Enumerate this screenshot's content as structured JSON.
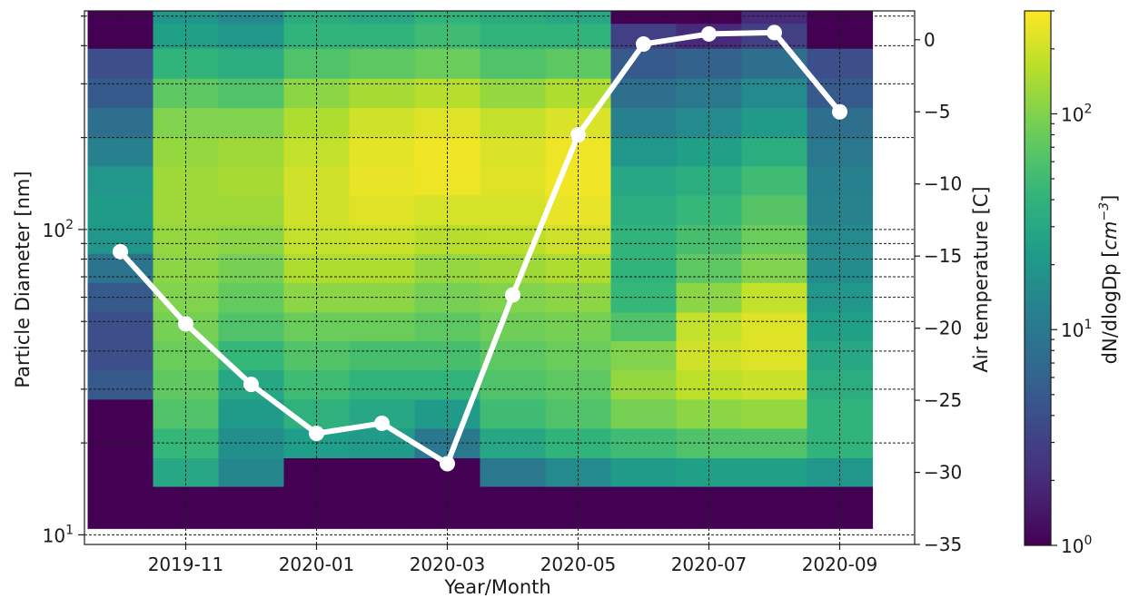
{
  "chart_data": {
    "type": "heatmap",
    "xlabel": "Year/Month",
    "ylabel_left": "Particle Diameter [nm]",
    "ylabel_right": "Air temperature [C]",
    "colorbar_label": "dN/dlogDp [cm⁻³]",
    "colorbar_label_parts": {
      "base": "dN/dlogDp [",
      "unit": "cm",
      "sup": "−3",
      "close": "]"
    },
    "colormap": "viridis",
    "x_tick_labels": [
      "2019-11",
      "2020-01",
      "2020-03",
      "2020-05",
      "2020-07",
      "2020-09"
    ],
    "x_tick_months": [
      "2019-11",
      "2020-01",
      "2020-03",
      "2020-05",
      "2020-07",
      "2020-09"
    ],
    "y_scale": "log",
    "y_tick_labels": [
      {
        "base": "10",
        "exp": "1",
        "value": 10
      },
      {
        "base": "10",
        "exp": "2",
        "value": 100
      }
    ],
    "ylim_nm": [
      9.3,
      520
    ],
    "right_y_ticks": [
      "0",
      "−5",
      "−10",
      "−15",
      "−20",
      "−25",
      "−30",
      "−35"
    ],
    "right_ylim_c": [
      -35,
      2
    ],
    "colorbar_ticks": [
      {
        "base": "10",
        "exp": "0",
        "value": 1
      },
      {
        "base": "10",
        "exp": "1",
        "value": 10
      },
      {
        "base": "10",
        "exp": "2",
        "value": 100
      }
    ],
    "colorbar_range": [
      1,
      300
    ],
    "grid": true,
    "months": [
      "2019-10",
      "2019-11",
      "2019-12",
      "2020-01",
      "2020-02",
      "2020-03",
      "2020-04",
      "2020-05",
      "2020-06",
      "2020-07",
      "2020-08",
      "2020-09"
    ],
    "diameter_bins_nm": [
      10.5,
      13,
      16,
      20,
      25,
      31,
      39,
      48,
      60,
      75,
      93,
      116,
      145,
      180,
      225,
      280,
      350,
      440,
      510
    ],
    "dN_dlogDp": [
      [
        1,
        1,
        1,
        1,
        1,
        5,
        4,
        4,
        5,
        9,
        20,
        22,
        20,
        12,
        8,
        5,
        4,
        1,
        1
      ],
      [
        1,
        1,
        30,
        45,
        60,
        72,
        80,
        90,
        100,
        110,
        120,
        130,
        130,
        120,
        100,
        70,
        40,
        25,
        20
      ],
      [
        1,
        1,
        14,
        17,
        22,
        30,
        45,
        60,
        75,
        90,
        110,
        130,
        140,
        130,
        100,
        60,
        35,
        20,
        15
      ],
      [
        1,
        1,
        1,
        24,
        38,
        50,
        62,
        80,
        110,
        150,
        180,
        200,
        200,
        180,
        150,
        110,
        60,
        40,
        35
      ],
      [
        1,
        1,
        1,
        22,
        30,
        40,
        55,
        80,
        110,
        150,
        190,
        230,
        250,
        240,
        200,
        140,
        70,
        40,
        30
      ],
      [
        1,
        1,
        1,
        10,
        22,
        40,
        55,
        70,
        90,
        120,
        160,
        210,
        260,
        270,
        230,
        160,
        80,
        50,
        40
      ],
      [
        1,
        1,
        10,
        30,
        50,
        60,
        70,
        85,
        100,
        130,
        170,
        210,
        230,
        220,
        180,
        120,
        60,
        40,
        35
      ],
      [
        1,
        1,
        15,
        40,
        60,
        70,
        80,
        90,
        110,
        150,
        200,
        250,
        270,
        260,
        220,
        150,
        70,
        40,
        30
      ],
      [
        1,
        1,
        22,
        50,
        90,
        120,
        100,
        60,
        45,
        40,
        40,
        35,
        30,
        20,
        12,
        8,
        5,
        3,
        1
      ],
      [
        1,
        1,
        25,
        60,
        110,
        170,
        200,
        180,
        110,
        70,
        55,
        45,
        35,
        25,
        15,
        10,
        6,
        2,
        1
      ],
      [
        1,
        1,
        25,
        60,
        120,
        190,
        230,
        230,
        180,
        100,
        80,
        65,
        50,
        35,
        22,
        15,
        8,
        3,
        2
      ],
      [
        1,
        1,
        20,
        40,
        40,
        35,
        30,
        25,
        20,
        16,
        15,
        13,
        12,
        10,
        8,
        5,
        4,
        1,
        1
      ]
    ],
    "air_temperature_c": [
      -14.7,
      -19.7,
      -23.9,
      -27.3,
      -26.6,
      -29.4,
      -17.7,
      -6.6,
      -0.3,
      0.4,
      0.5,
      -5.0
    ],
    "series": [
      {
        "values": [
          -14.7,
          -19.7,
          -23.9,
          -27.3,
          -26.6,
          -29.4,
          -17.7,
          -6.6,
          -0.3,
          0.4,
          0.5,
          -5.0
        ],
        "color": "#ffffff"
      }
    ],
    "colors": {
      "line": "#ffffff",
      "grid": "#1a1a1a",
      "text": "#1a1a1a"
    }
  }
}
